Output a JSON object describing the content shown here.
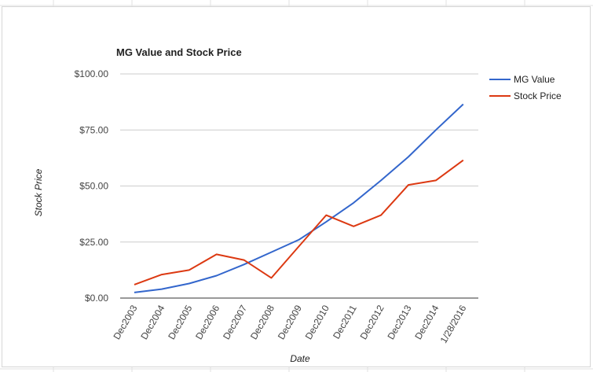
{
  "chart_data": {
    "type": "line",
    "title": "MG Value and Stock Price",
    "xlabel": "Date",
    "ylabel": "Stock Price",
    "categories": [
      "Dec2003",
      "Dec2004",
      "Dec2005",
      "Dec2006",
      "Dec2007",
      "Dec2008",
      "Dec2009",
      "Dec2010",
      "Dec2011",
      "Dec2012",
      "Dec2013",
      "Dec2014",
      "1/28/2016"
    ],
    "yticks": [
      "$0.00",
      "$25.00",
      "$50.00",
      "$75.00",
      "$100.00"
    ],
    "ylim": [
      0,
      100
    ],
    "grid": true,
    "legend_position": "right",
    "series": [
      {
        "name": "MG Value",
        "color": "#3366cc",
        "values": [
          2.5,
          4,
          6.5,
          10,
          15,
          20.5,
          26,
          34,
          42.5,
          52.5,
          63,
          75,
          86.5
        ]
      },
      {
        "name": "Stock Price",
        "color": "#dc3912",
        "values": [
          6,
          10.5,
          12.5,
          19.5,
          17,
          9,
          23,
          37,
          32,
          37,
          50.5,
          52.5,
          61.5
        ]
      }
    ]
  }
}
